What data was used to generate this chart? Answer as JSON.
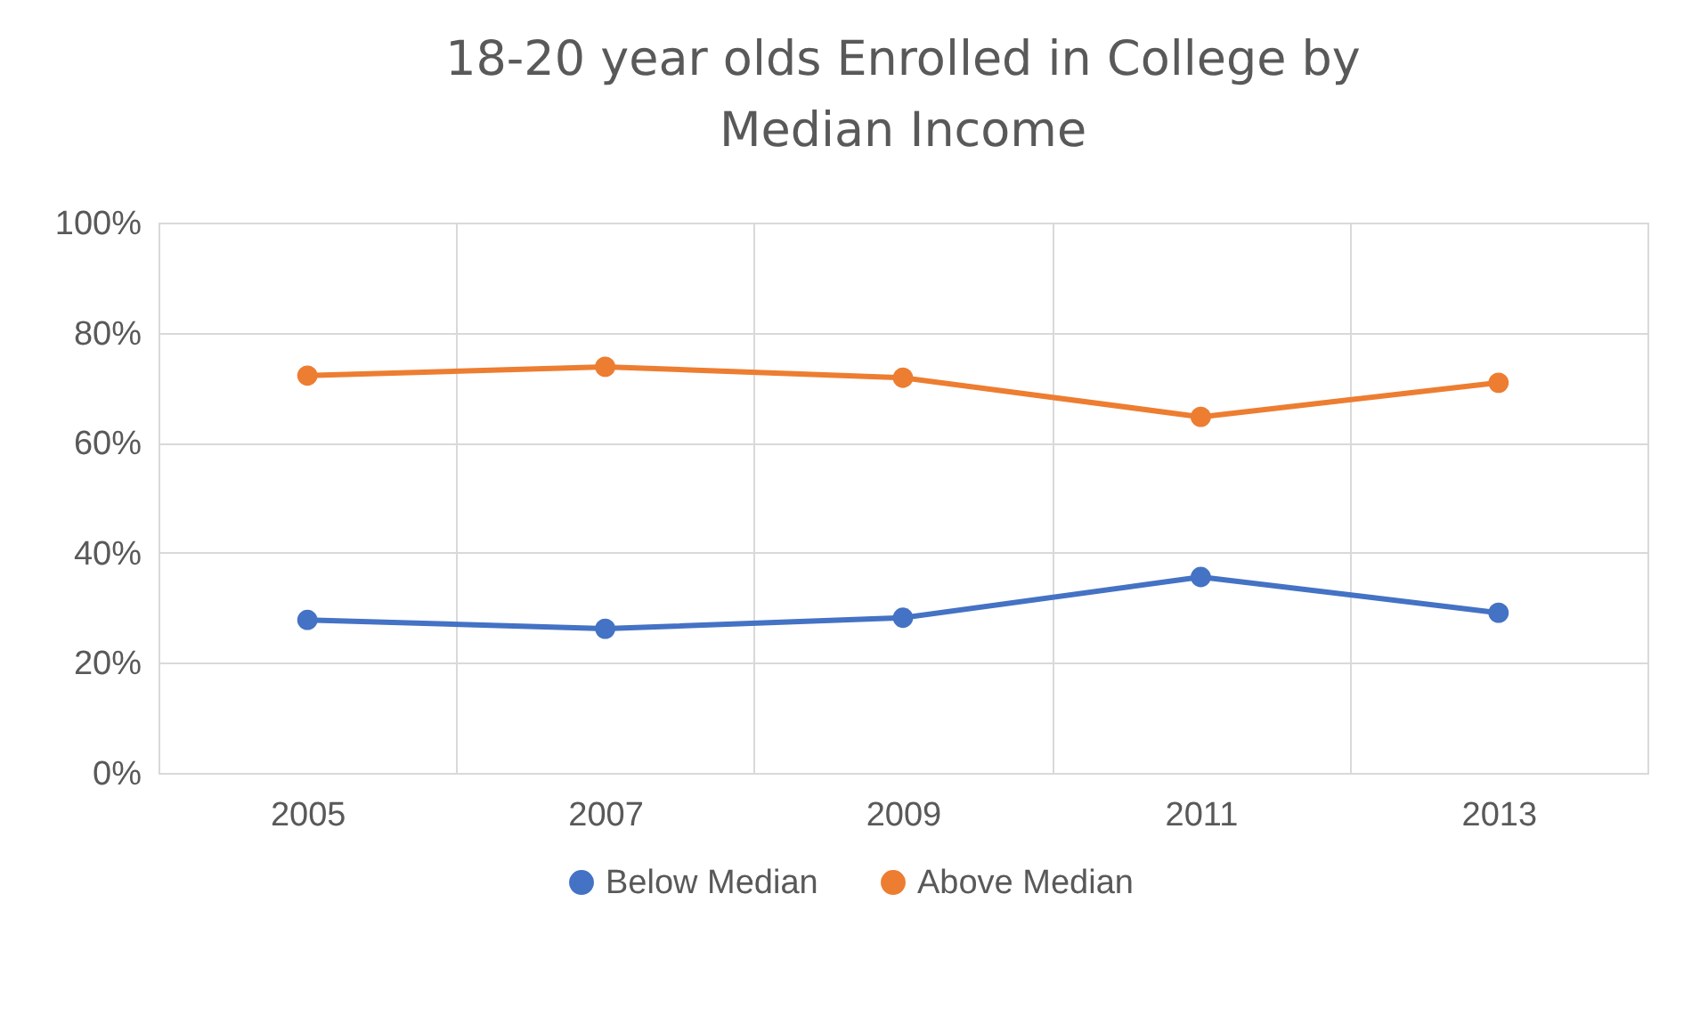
{
  "chart_data": {
    "type": "line",
    "title": [
      "18-20 year olds Enrolled in College by",
      "Median Income"
    ],
    "categories": [
      "2005",
      "2007",
      "2009",
      "2011",
      "2013"
    ],
    "series": [
      {
        "name": "Below Median",
        "color": "#4472c4",
        "values": [
          27.8,
          26.2,
          28.2,
          35.6,
          29.1
        ]
      },
      {
        "name": "Above Median",
        "color": "#ed7d31",
        "values": [
          72.2,
          73.8,
          71.8,
          64.7,
          70.9
        ]
      }
    ],
    "ylim": [
      0,
      100
    ],
    "yticks": [
      {
        "value": 0,
        "label": "0%"
      },
      {
        "value": 20,
        "label": "20%"
      },
      {
        "value": 40,
        "label": "40%"
      },
      {
        "value": 60,
        "label": "60%"
      },
      {
        "value": 80,
        "label": "80%"
      },
      {
        "value": 100,
        "label": "100%"
      }
    ],
    "grid": true,
    "legend": "bottom",
    "marker": "circle",
    "line_style": "solid"
  }
}
